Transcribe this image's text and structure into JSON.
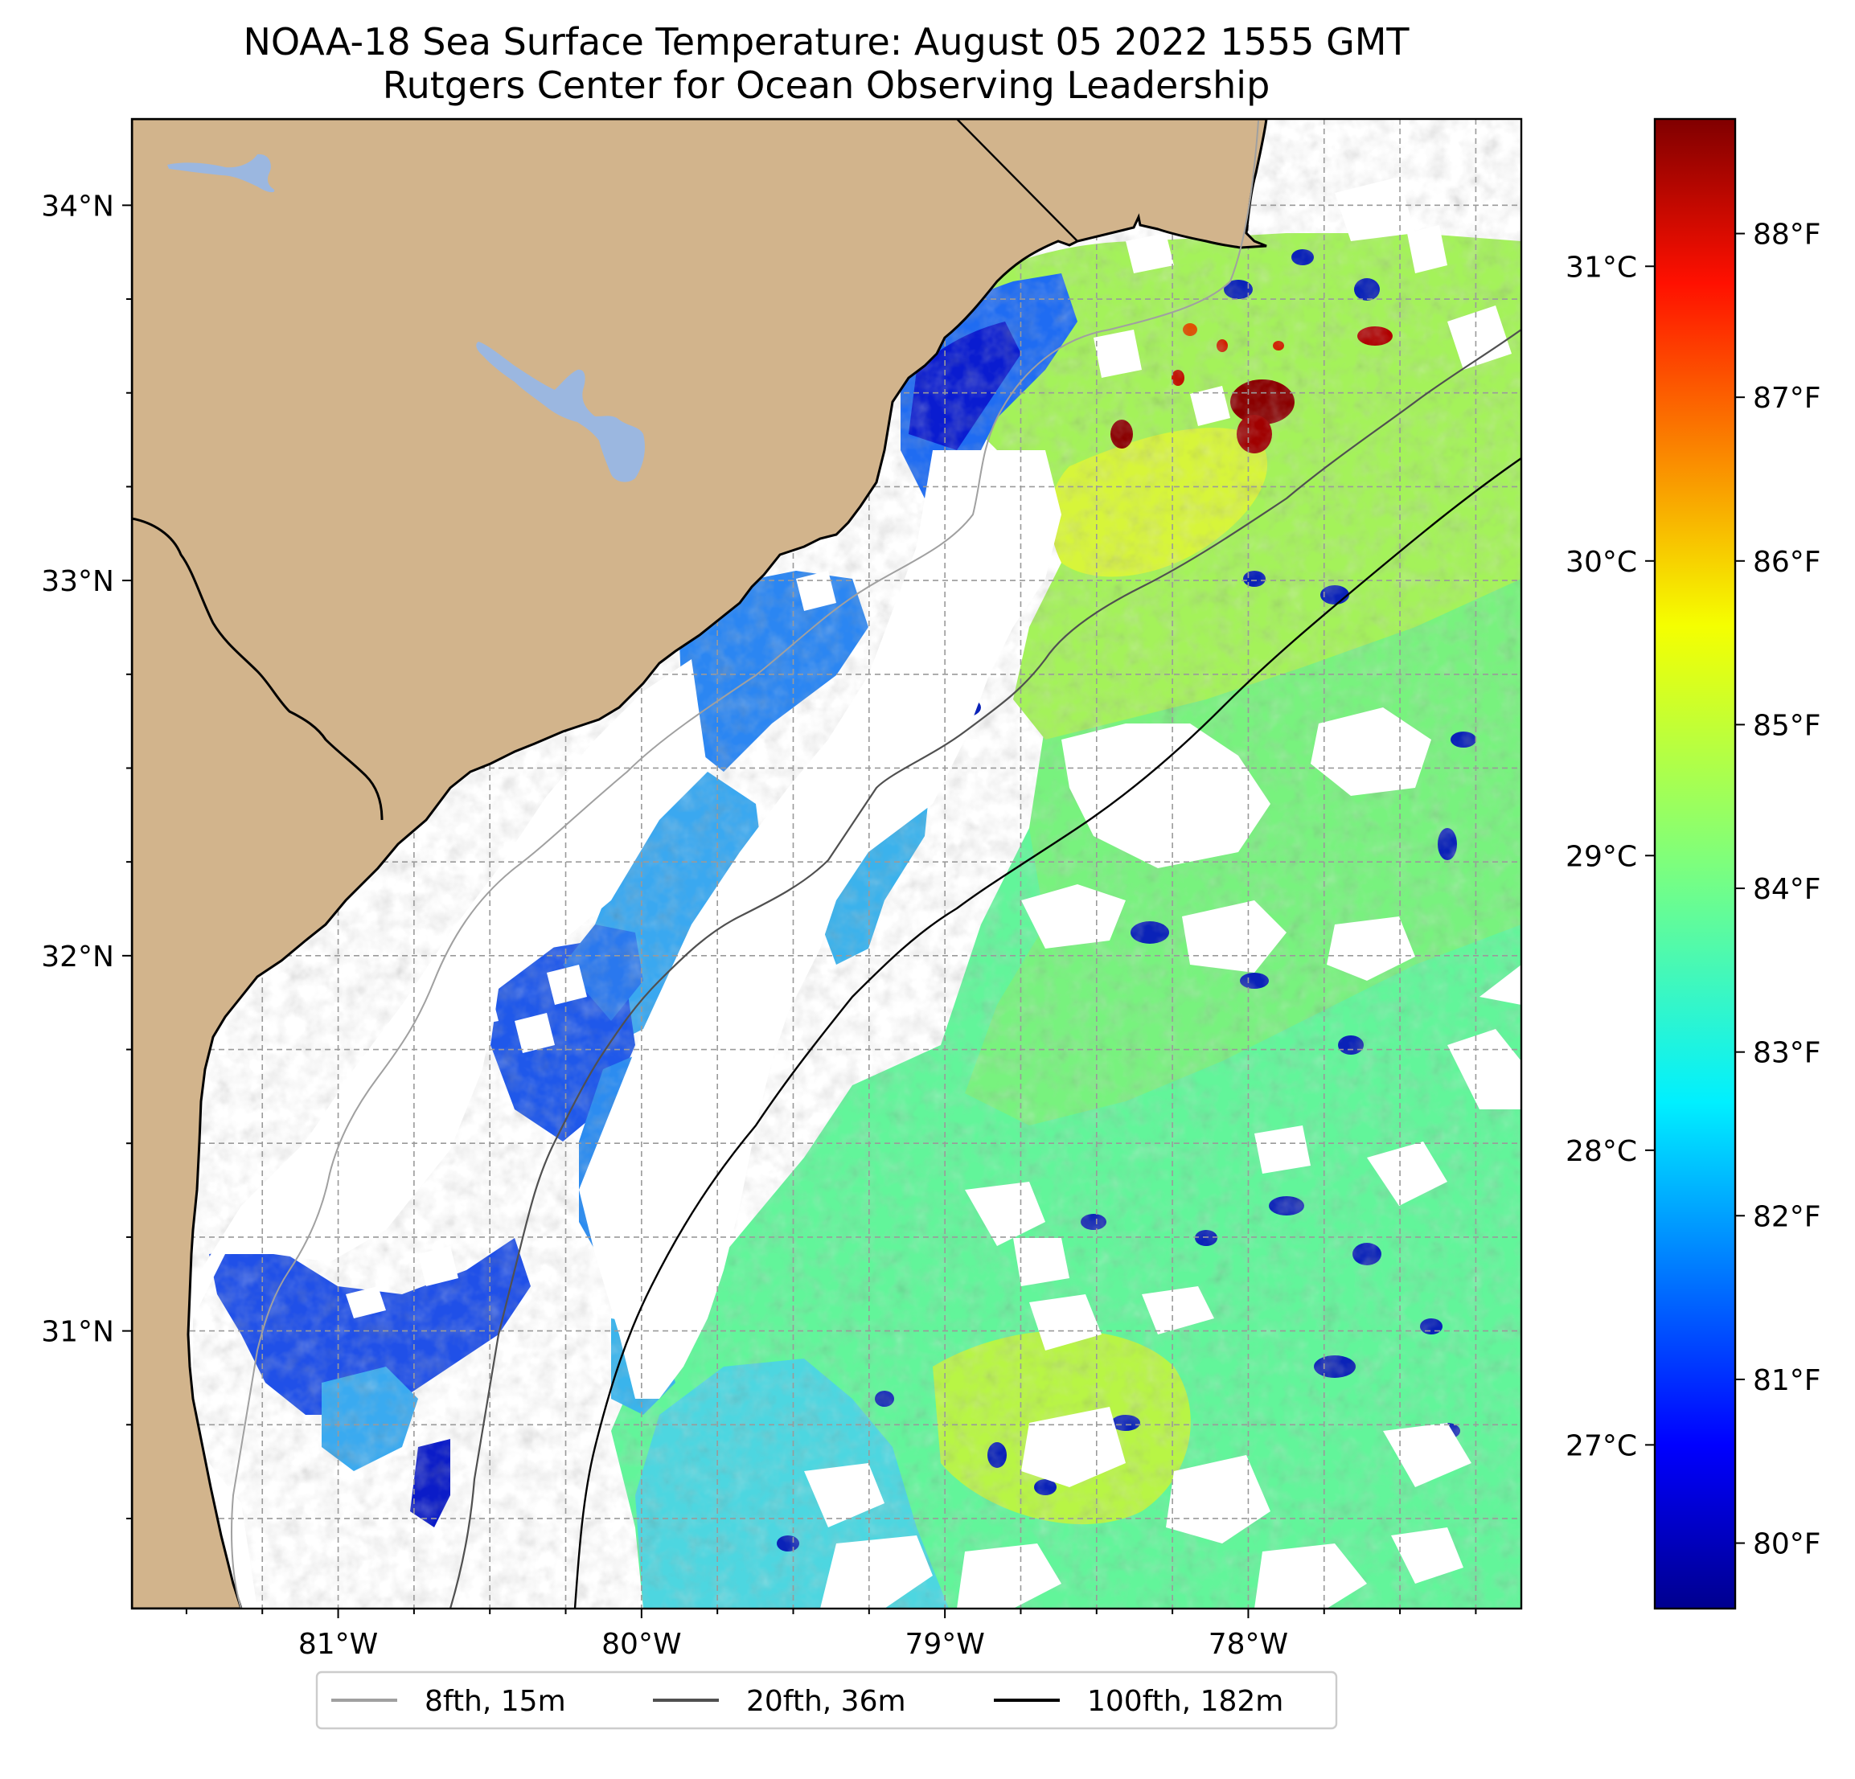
{
  "title": "NOAA-18 Sea Surface Temperature: August 05 2022 1555 GMT",
  "subtitle": "Rutgers Center for Ocean Observing Leadership",
  "map": {
    "lon_range": [
      -81.68,
      -77.1
    ],
    "lat_range": [
      30.26,
      34.23
    ],
    "lon_ticks": [
      {
        "value": -81,
        "label": "81°W"
      },
      {
        "value": -80,
        "label": "80°W"
      },
      {
        "value": -79,
        "label": "79°W"
      },
      {
        "value": -78,
        "label": "78°W"
      }
    ],
    "lat_ticks": [
      {
        "value": 31,
        "label": "31°N"
      },
      {
        "value": 32,
        "label": "32°N"
      },
      {
        "value": 33,
        "label": "33°N"
      },
      {
        "value": 34,
        "label": "34°N"
      }
    ],
    "gridlines": "dashed grey",
    "colors": {
      "land": "#d2b48c",
      "lakes": "#9bb7e0",
      "missing_data": "#ffffff"
    }
  },
  "colorbar": {
    "colormap": "jet",
    "range_f": [
      79.6,
      88.7
    ],
    "fahrenheit_ticks": [
      "88°F",
      "87°F",
      "86°F",
      "85°F",
      "84°F",
      "83°F",
      "82°F",
      "81°F",
      "80°F"
    ],
    "celsius_ticks": [
      "31°C",
      "30°C",
      "29°C",
      "28°C",
      "27°C"
    ]
  },
  "legend": {
    "items": [
      {
        "label": "8fth, 15m",
        "color": "#a0a0a0"
      },
      {
        "label": "20fth, 36m",
        "color": "#505050"
      },
      {
        "label": "100fth, 182m",
        "color": "#000000"
      }
    ]
  }
}
